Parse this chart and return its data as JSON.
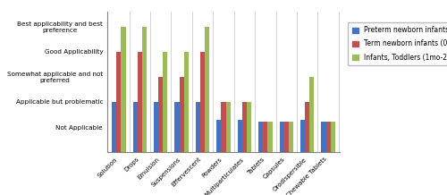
{
  "categories": [
    "Solution",
    "Drops",
    "Emulsion",
    "Suspensions",
    "Effervescent",
    "Powders",
    "Multiparticulates",
    "Tablets",
    "Capsules",
    "Orodispersible",
    "Chewable Tablets"
  ],
  "ytick_labels": [
    "Not Applicable",
    "Applicable but problematic",
    "Somewhat applicable and not\npreferred",
    "Good Applicability",
    "Best applicability and best\npreference"
  ],
  "ytick_positions": [
    1,
    2,
    3,
    4,
    5
  ],
  "series": {
    "Preterm newborn infants": [
      2,
      2,
      2,
      2,
      2,
      1.3,
      1.3,
      1.2,
      1.2,
      1.3,
      1.2
    ],
    "Term newborn infants (0-28days)": [
      4,
      4,
      3,
      3,
      4,
      2,
      2,
      1.2,
      1.2,
      2,
      1.2
    ],
    "Infants, Toddlers (1mo-2yrs)": [
      5,
      5,
      4,
      4,
      5,
      2,
      2,
      1.2,
      1.2,
      3,
      1.2
    ]
  },
  "colors": {
    "Preterm newborn infants": "#4472C4",
    "Term newborn infants (0-28days)": "#C0504D",
    "Infants, Toddlers (1mo-2yrs)": "#9BBB59"
  },
  "ylim": [
    0,
    5.6
  ],
  "bar_width": 0.22,
  "background_color": "#ffffff",
  "legend_fontsize": 5.5,
  "tick_fontsize": 5.0,
  "ytick_fontsize": 5.2
}
